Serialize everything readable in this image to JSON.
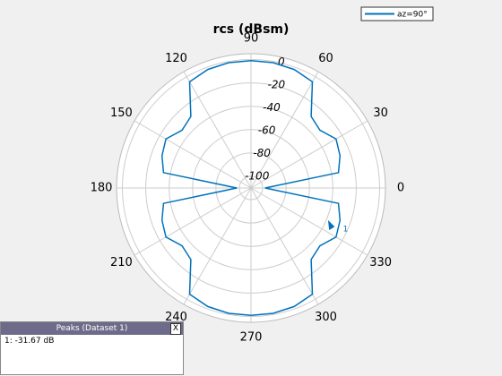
{
  "chart_data": {
    "type": "polar",
    "title": "rcs (dBsm)",
    "series": [
      {
        "name": "az=90°",
        "color": "#0072bd",
        "theta": [
          0,
          10,
          20,
          30,
          40,
          50,
          60,
          70,
          80,
          90,
          100,
          110,
          120,
          130,
          140,
          150,
          160,
          170,
          180,
          190,
          200,
          210,
          220,
          230,
          240,
          250,
          260,
          270,
          280,
          290,
          300,
          310,
          320,
          330,
          340,
          350
        ],
        "values": [
          -98,
          -34,
          -29,
          -26,
          -33,
          -30,
          -5,
          -2,
          -1,
          -1,
          -1,
          -2,
          -5,
          -30,
          -33,
          -26,
          -29,
          -34,
          -98,
          -34,
          -29,
          -26,
          -33,
          -30,
          -5,
          -2,
          -1,
          -1,
          -1,
          -2,
          -5,
          -30,
          -33,
          -26,
          -29,
          -34
        ]
      }
    ],
    "rlim": [
      -110,
      5
    ],
    "rticks": [
      0,
      -20,
      -40,
      -60,
      -80,
      -100
    ],
    "thetaticks": [
      0,
      30,
      60,
      90,
      120,
      150,
      180,
      210,
      240,
      270,
      300,
      330
    ],
    "marker": {
      "label": "1",
      "theta": 335,
      "value": -31.67
    },
    "legend": "northeast"
  },
  "peaks_panel": {
    "title": "Peaks (Dataset 1)",
    "close": "X",
    "entries": [
      "1: -31.67 dB"
    ]
  }
}
